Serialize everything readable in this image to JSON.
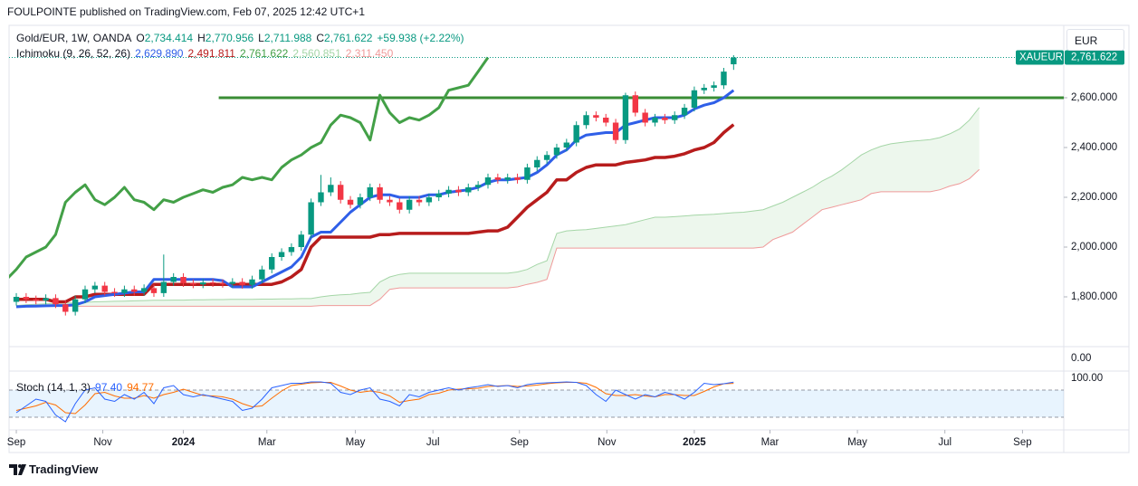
{
  "header": {
    "publisher": "FOULPOINTE published on TradingView.com, Feb 07, 2025 12:42 UTC+1",
    "brand": "TradingView"
  },
  "chart_data": [
    {
      "type": "candlestick",
      "title": "Gold/EUR, 1W, OANDA",
      "ohlc_legend": [
        {
          "key": "O",
          "label": "2,734.414"
        },
        {
          "key": "H",
          "label": "2,770.956"
        },
        {
          "key": "L",
          "label": "2,711.988"
        },
        {
          "key": "C",
          "label": "2,761.622"
        }
      ],
      "change_label": "+59.938 (+2.22%)",
      "currency": "EUR",
      "symbol_tag": "XAUEUR",
      "last_price_label": "2,761.622",
      "up_color": "#089981",
      "down_color": "#f23645",
      "x": [
        0,
        1,
        2,
        3,
        4,
        5,
        6,
        7,
        8,
        9,
        10,
        11,
        12,
        13,
        14,
        15,
        16,
        17,
        18,
        19,
        20,
        21,
        22,
        23,
        24,
        25,
        26,
        27,
        28,
        29,
        30,
        31,
        32,
        33,
        34,
        35,
        36,
        37,
        38,
        39,
        40,
        41,
        42,
        43,
        44,
        45,
        46,
        47,
        48,
        49,
        50,
        51,
        52,
        53,
        54,
        55,
        56,
        57,
        58,
        59,
        60,
        61,
        62,
        63,
        64,
        65,
        66,
        67,
        68,
        69,
        70,
        71,
        72,
        73
      ],
      "open": [
        1780,
        1800,
        1790,
        1785,
        1795,
        1770,
        1740,
        1790,
        1830,
        1845,
        1820,
        1815,
        1830,
        1820,
        1835,
        1815,
        1860,
        1880,
        1855,
        1850,
        1858,
        1855,
        1852,
        1860,
        1848,
        1870,
        1910,
        1960,
        1980,
        2000,
        2050,
        2180,
        2220,
        2250,
        2190,
        2170,
        2200,
        2240,
        2190,
        2180,
        2150,
        2190,
        2180,
        2200,
        2215,
        2230,
        2220,
        2240,
        2250,
        2280,
        2270,
        2280,
        2270,
        2320,
        2350,
        2370,
        2400,
        2420,
        2490,
        2530,
        2520,
        2500,
        2430,
        2610,
        2540,
        2500,
        2520,
        2510,
        2530,
        2560,
        2630,
        2640,
        2650,
        2734.414
      ],
      "high": [
        1815,
        1815,
        1805,
        1810,
        1810,
        1785,
        1805,
        1845,
        1860,
        1860,
        1835,
        1845,
        1845,
        1850,
        1850,
        1970,
        1895,
        1895,
        1870,
        1873,
        1873,
        1870,
        1875,
        1875,
        1885,
        1925,
        1975,
        1995,
        2015,
        2065,
        2195,
        2290,
        2280,
        2265,
        2205,
        2215,
        2255,
        2255,
        2205,
        2195,
        2205,
        2205,
        2215,
        2230,
        2245,
        2245,
        2255,
        2265,
        2295,
        2295,
        2295,
        2295,
        2335,
        2365,
        2385,
        2415,
        2435,
        2505,
        2545,
        2545,
        2535,
        2515,
        2620,
        2625,
        2555,
        2535,
        2535,
        2545,
        2575,
        2645,
        2655,
        2665,
        2720,
        2770.956
      ],
      "low": [
        1765,
        1775,
        1770,
        1770,
        1755,
        1725,
        1725,
        1775,
        1815,
        1805,
        1800,
        1800,
        1805,
        1805,
        1800,
        1800,
        1845,
        1840,
        1835,
        1835,
        1840,
        1837,
        1837,
        1833,
        1833,
        1855,
        1895,
        1945,
        1965,
        1985,
        2035,
        2165,
        2205,
        2175,
        2155,
        2155,
        2185,
        2175,
        2165,
        2135,
        2135,
        2165,
        2165,
        2185,
        2200,
        2205,
        2205,
        2225,
        2235,
        2255,
        2255,
        2255,
        2255,
        2305,
        2335,
        2355,
        2385,
        2405,
        2475,
        2505,
        2485,
        2415,
        2415,
        2525,
        2485,
        2485,
        2495,
        2495,
        2515,
        2545,
        2615,
        2625,
        2635,
        2711.988
      ],
      "close": [
        1800,
        1790,
        1785,
        1795,
        1770,
        1740,
        1790,
        1830,
        1845,
        1820,
        1815,
        1830,
        1820,
        1835,
        1815,
        1860,
        1880,
        1855,
        1850,
        1858,
        1855,
        1852,
        1860,
        1848,
        1870,
        1910,
        1960,
        1980,
        2000,
        2050,
        2180,
        2220,
        2250,
        2190,
        2170,
        2200,
        2240,
        2190,
        2180,
        2150,
        2190,
        2180,
        2200,
        2215,
        2230,
        2220,
        2240,
        2250,
        2280,
        2270,
        2280,
        2270,
        2320,
        2350,
        2370,
        2400,
        2420,
        2490,
        2530,
        2520,
        2500,
        2430,
        2610,
        2540,
        2500,
        2520,
        2510,
        2530,
        2560,
        2630,
        2640,
        2650,
        2705,
        2761.622
      ],
      "xlim": [
        -0.74,
        106.6
      ],
      "xticks": [
        {
          "value": 0,
          "label": "Sep"
        },
        {
          "value": 8.8,
          "label": "Nov"
        },
        {
          "value": 17,
          "label": "2024"
        },
        {
          "value": 25.5,
          "label": "Mar"
        },
        {
          "value": 34.5,
          "label": "May"
        },
        {
          "value": 42.4,
          "label": "Jul"
        },
        {
          "value": 51.2,
          "label": "Sep"
        },
        {
          "value": 60.1,
          "label": "Nov"
        },
        {
          "value": 69,
          "label": "2025"
        },
        {
          "value": 76.7,
          "label": "Mar"
        },
        {
          "value": 85.6,
          "label": "May"
        },
        {
          "value": 94.5,
          "label": "Jul"
        },
        {
          "value": 102.4,
          "label": "Sep"
        }
      ],
      "ylim": [
        1600,
        2883.6
      ],
      "yticks": [
        {
          "value": 1800,
          "label": "1,800.000"
        },
        {
          "value": 2000,
          "label": "2,000.000"
        },
        {
          "value": 2200,
          "label": "2,200.000"
        },
        {
          "value": 2400,
          "label": "2,400.000"
        },
        {
          "value": 2600,
          "label": "2,600.000"
        }
      ],
      "grid": false,
      "level_line": {
        "value": 2600,
        "from_x": 20.6,
        "color": "#3a8d35"
      },
      "ichimoku": {
        "label": "Ichimoku (9, 26, 52, 26)",
        "conversion": {
          "color": "#2f5fe8",
          "last_label": "2,629.890",
          "values": [
            1760,
            1762,
            1763,
            1764,
            1765,
            1765,
            1768,
            1780,
            1800,
            1805,
            1810,
            1815,
            1820,
            1820,
            1870,
            1870,
            1870,
            1870,
            1870,
            1870,
            1870,
            1865,
            1840,
            1840,
            1840,
            1860,
            1880,
            1900,
            1920,
            1960,
            2040,
            2060,
            2060,
            2100,
            2140,
            2170,
            2200,
            2210,
            2210,
            2200,
            2200,
            2200,
            2210,
            2210,
            2220,
            2225,
            2230,
            2240,
            2260,
            2270,
            2270,
            2275,
            2280,
            2300,
            2330,
            2370,
            2390,
            2430,
            2450,
            2455,
            2460,
            2460,
            2490,
            2500,
            2510,
            2520,
            2520,
            2520,
            2530,
            2555,
            2570,
            2580,
            2600,
            2629.89
          ]
        },
        "base": {
          "color": "#b71c1c",
          "last_label": "2,491.811",
          "values": [
            1790,
            1790,
            1790,
            1790,
            1780,
            1780,
            1800,
            1800,
            1810,
            1810,
            1810,
            1810,
            1810,
            1810,
            1850,
            1850,
            1850,
            1850,
            1850,
            1850,
            1850,
            1850,
            1850,
            1850,
            1850,
            1850,
            1850,
            1860,
            1880,
            1910,
            2000,
            2040,
            2040,
            2040,
            2040,
            2040,
            2040,
            2050,
            2050,
            2055,
            2055,
            2055,
            2055,
            2055,
            2055,
            2055,
            2055,
            2060,
            2065,
            2065,
            2080,
            2120,
            2160,
            2190,
            2220,
            2270,
            2270,
            2300,
            2320,
            2330,
            2330,
            2330,
            2340,
            2345,
            2350,
            2360,
            2360,
            2365,
            2375,
            2390,
            2400,
            2420,
            2460,
            2491.811
          ]
        },
        "lagging": {
          "color": "#43a047",
          "last_label": "2,761.622"
        },
        "span_a": {
          "color": "#a5d6a7",
          "last_label": "2,560.851",
          "values": [
            1765,
            1768,
            1770,
            1772,
            1774,
            1775,
            1776,
            1778,
            1780,
            1781,
            1782,
            1783,
            1784,
            1785,
            1786,
            1786,
            1787,
            1787,
            1788,
            1788,
            1789,
            1789,
            1790,
            1790,
            1790,
            1791,
            1791,
            1792,
            1792,
            1793,
            1793,
            1800,
            1805,
            1808,
            1810,
            1815,
            1818,
            1860,
            1880,
            1890,
            1895,
            1895,
            1895,
            1895,
            1895,
            1895,
            1895,
            1895,
            1895,
            1895,
            1895,
            1900,
            1910,
            1930,
            1945,
            2055,
            2065,
            2068,
            2070,
            2075,
            2080,
            2085,
            2090,
            2100,
            2110,
            2120,
            2120,
            2122,
            2125,
            2128,
            2130,
            2132,
            2135,
            2138,
            2140,
            2145,
            2150,
            2165,
            2180,
            2200,
            2220,
            2240,
            2265,
            2285,
            2310,
            2340,
            2370,
            2390,
            2405,
            2415,
            2420,
            2425,
            2428,
            2432,
            2440,
            2455,
            2475,
            2510,
            2560.851
          ]
        },
        "span_b": {
          "color": "#ef9a9a",
          "last_label": "2,311.450",
          "values": [
            1762,
            1762,
            1762,
            1762,
            1762,
            1762,
            1762,
            1762,
            1762,
            1762,
            1762,
            1762,
            1762,
            1762,
            1762,
            1762,
            1762,
            1762,
            1762,
            1762,
            1762,
            1762,
            1762,
            1762,
            1762,
            1762,
            1762,
            1762,
            1762,
            1762,
            1762,
            1765,
            1765,
            1765,
            1765,
            1765,
            1765,
            1790,
            1830,
            1836,
            1836,
            1836,
            1836,
            1836,
            1836,
            1836,
            1836,
            1836,
            1836,
            1836,
            1836,
            1840,
            1850,
            1858,
            1870,
            1996,
            1996,
            1996,
            1996,
            1996,
            1996,
            1996,
            1996,
            1996,
            1996,
            1996,
            1996,
            1996,
            1996,
            1996,
            1996,
            1996,
            1996,
            1996,
            1996,
            1996,
            2000,
            2030,
            2045,
            2060,
            2090,
            2120,
            2150,
            2160,
            2170,
            2180,
            2190,
            2215,
            2222,
            2222,
            2222,
            2222,
            2222,
            2222,
            2230,
            2245,
            2255,
            2275,
            2311.45
          ]
        },
        "cloud_color": "rgba(76,175,80,0.10)"
      },
      "empty_pane": {
        "yticks": [
          {
            "value": 0,
            "label": "0.00"
          }
        ]
      }
    },
    {
      "type": "line",
      "title": "Stoch (14, 1, 3)",
      "ylim": [
        0,
        100
      ],
      "yticks": [
        {
          "value": 100,
          "label": "100.00"
        }
      ],
      "bands": [
        20,
        80
      ],
      "band_color": "rgba(33,150,243,0.10)",
      "series": [
        {
          "color": "#2962ff",
          "last_label": "97.40",
          "values": [
            30,
            45,
            60,
            55,
            25,
            10,
            50,
            80,
            85,
            60,
            55,
            70,
            60,
            75,
            50,
            85,
            90,
            70,
            65,
            70,
            65,
            60,
            55,
            35,
            40,
            60,
            85,
            90,
            95,
            95,
            98,
            98,
            95,
            75,
            70,
            80,
            85,
            60,
            55,
            45,
            70,
            65,
            75,
            80,
            85,
            80,
            85,
            88,
            92,
            88,
            90,
            85,
            92,
            95,
            96,
            97,
            98,
            97,
            90,
            70,
            55,
            80,
            70,
            60,
            70,
            65,
            75,
            70,
            60,
            75,
            95,
            92,
            94,
            97.4
          ]
        },
        {
          "color": "#ff6d00",
          "last_label": "94.77",
          "values": [
            35,
            40,
            45,
            53,
            47,
            30,
            28,
            47,
            72,
            75,
            67,
            62,
            62,
            68,
            62,
            70,
            75,
            82,
            75,
            68,
            67,
            65,
            60,
            50,
            43,
            45,
            62,
            78,
            90,
            93,
            96,
            97,
            97,
            89,
            80,
            75,
            78,
            75,
            67,
            53,
            57,
            60,
            70,
            73,
            80,
            82,
            83,
            84,
            88,
            89,
            90,
            88,
            89,
            91,
            94,
            96,
            97,
            97,
            95,
            86,
            72,
            68,
            68,
            70,
            67,
            65,
            70,
            70,
            68,
            68,
            77,
            87,
            94,
            94.77
          ]
        }
      ]
    }
  ]
}
